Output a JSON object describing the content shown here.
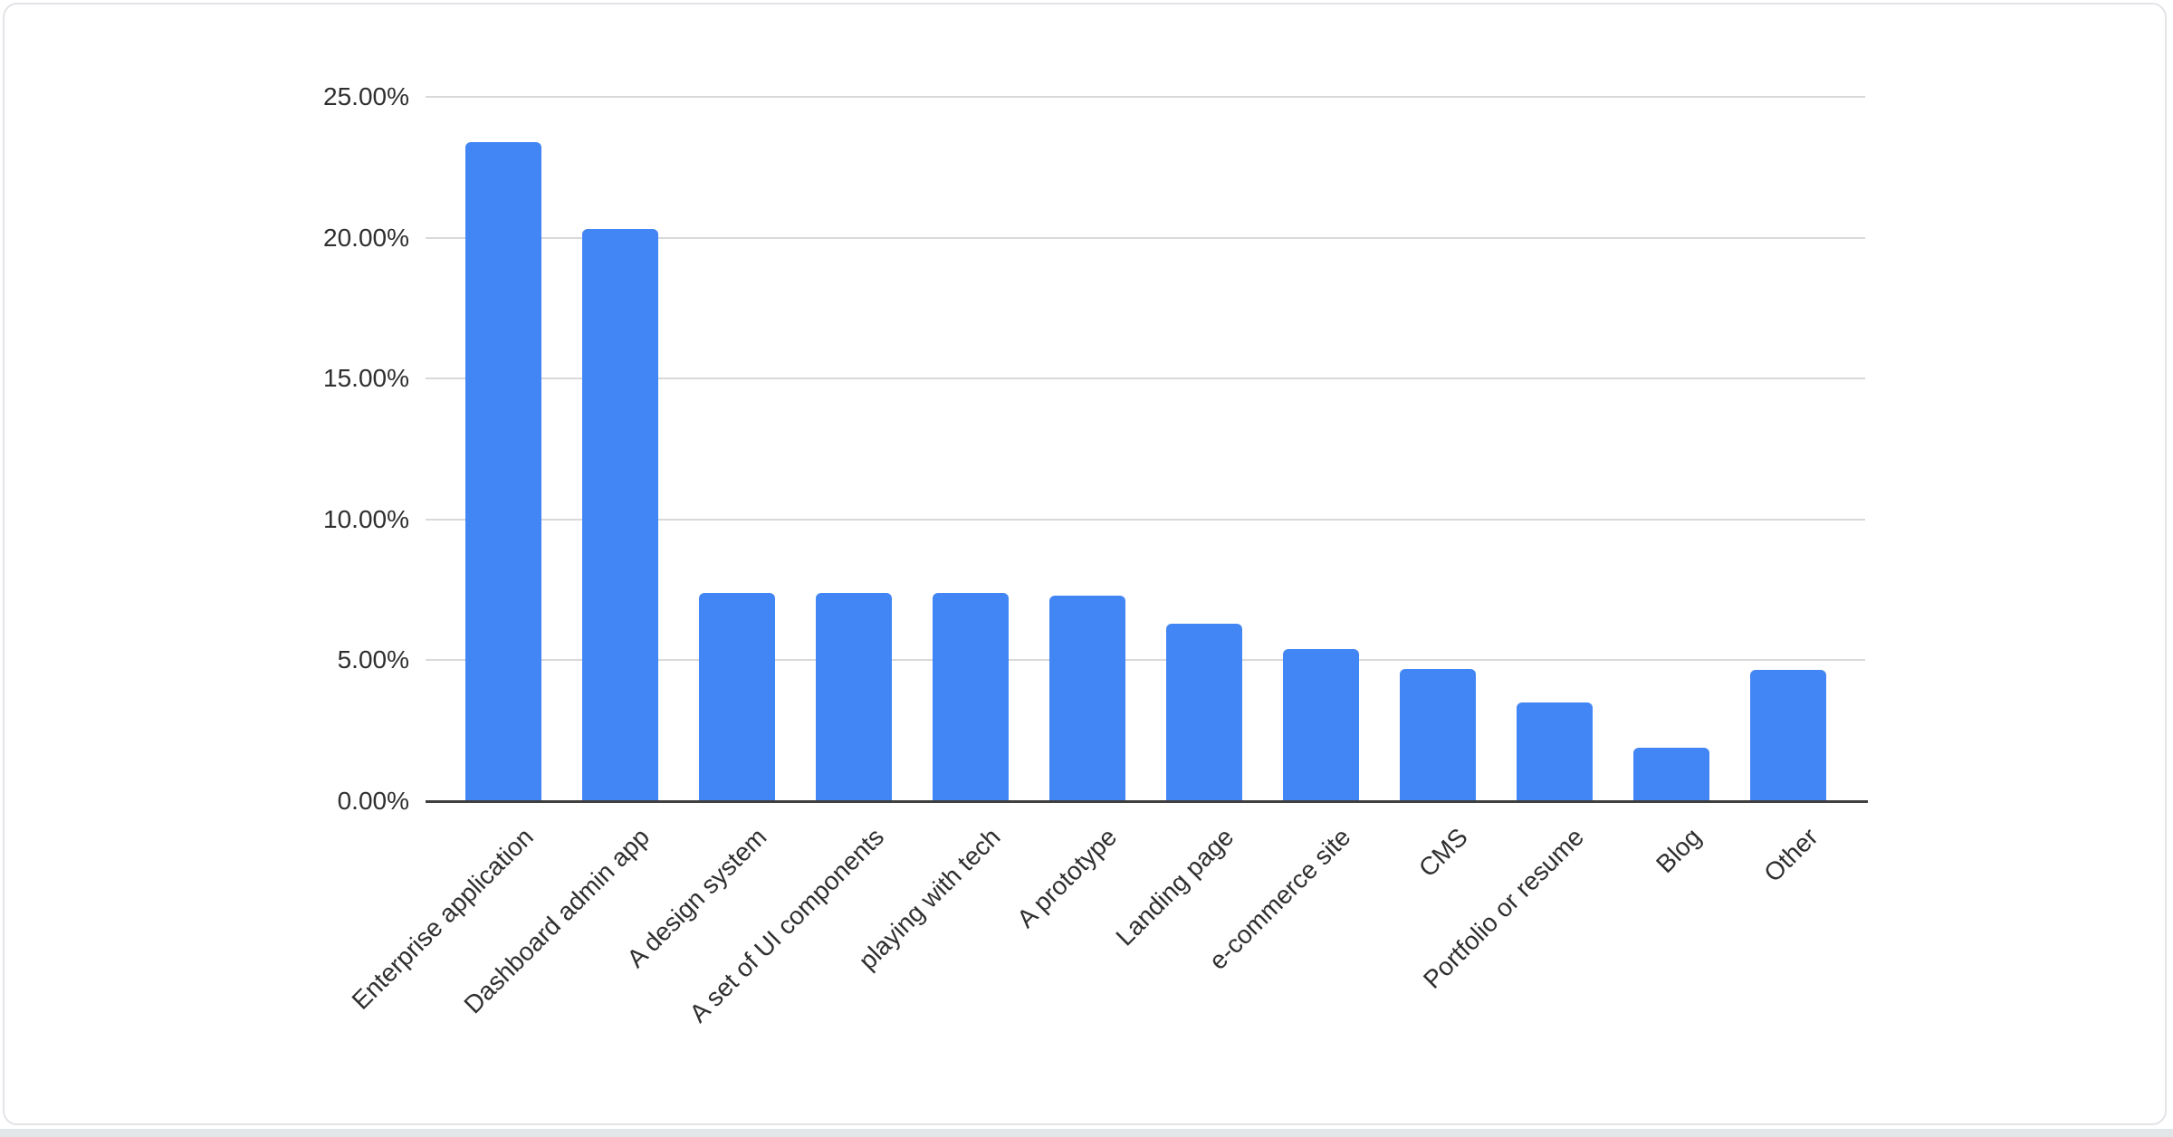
{
  "page": {
    "background_color": "#ffffff",
    "bottom_strip_color": "#e3e6e9"
  },
  "card": {
    "background_color": "#ffffff",
    "border_color": "#e2e4e7"
  },
  "chart_data": {
    "type": "bar",
    "title": "",
    "xlabel": "",
    "ylabel": "",
    "categories": [
      "Enterprise application",
      "Dashboard admin app",
      "A design system",
      "A set of UI components",
      "playing with tech",
      "A prototype",
      "Landing page",
      "e-commerce site",
      "CMS",
      "Portfolio or resume",
      "Blog",
      "Other"
    ],
    "values": [
      23.4,
      20.3,
      7.4,
      7.4,
      7.4,
      7.3,
      6.3,
      5.4,
      4.7,
      3.5,
      1.9,
      4.65
    ],
    "value_unit": "%",
    "y_tick_labels": [
      "0.00%",
      "5.00%",
      "10.00%",
      "15.00%",
      "20.00%",
      "25.00%"
    ],
    "y_tick_values": [
      0,
      5,
      10,
      15,
      20,
      25
    ],
    "ylim": [
      0,
      25
    ],
    "grid": true,
    "legend_position": "none",
    "bar_color": "#4285F4",
    "gridline_color": "#d9d9d9",
    "axis_line_color": "#404040",
    "label_color": "#2f2f2f"
  }
}
